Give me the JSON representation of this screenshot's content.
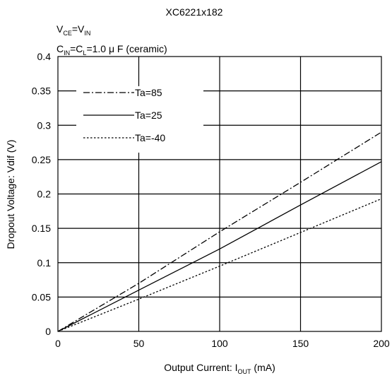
{
  "chart_data": {
    "type": "line",
    "title": "XC6221x182",
    "conditions": {
      "line1": {
        "base": "V",
        "sub1": "CE",
        "mid": "=V",
        "sub2": "IN"
      },
      "line2": {
        "base": "C",
        "sub1": "IN",
        "mid": "=C",
        "sub2": "L",
        "rest": "=1.0 μ F (ceramic)"
      }
    },
    "xlabel": {
      "base": "Output Current: I",
      "sub": "OUT",
      "rest": " (mA)"
    },
    "ylabel": "Dropout Voltage: Vdif  (V)",
    "xlim": [
      0,
      200
    ],
    "ylim": [
      0,
      0.4
    ],
    "xticks": [
      "0",
      "50",
      "100",
      "150",
      "200"
    ],
    "yticks": [
      "0",
      "0.05",
      "0.1",
      "0.15",
      "0.2",
      "0.25",
      "0.3",
      "0.35",
      "0.4"
    ],
    "grid": true,
    "legend_position": "top-left",
    "series": [
      {
        "name": "Ta=85",
        "style": "dash-dot",
        "x": [
          0,
          50,
          100,
          150,
          200
        ],
        "y": [
          0,
          0.07,
          0.145,
          0.217,
          0.29
        ]
      },
      {
        "name": "Ta=25",
        "style": "solid",
        "x": [
          0,
          50,
          100,
          150,
          200
        ],
        "y": [
          0,
          0.06,
          0.12,
          0.184,
          0.247
        ]
      },
      {
        "name": "Ta=-40",
        "style": "dotted",
        "x": [
          0,
          50,
          100,
          150,
          200
        ],
        "y": [
          0,
          0.047,
          0.095,
          0.144,
          0.193
        ]
      }
    ]
  }
}
